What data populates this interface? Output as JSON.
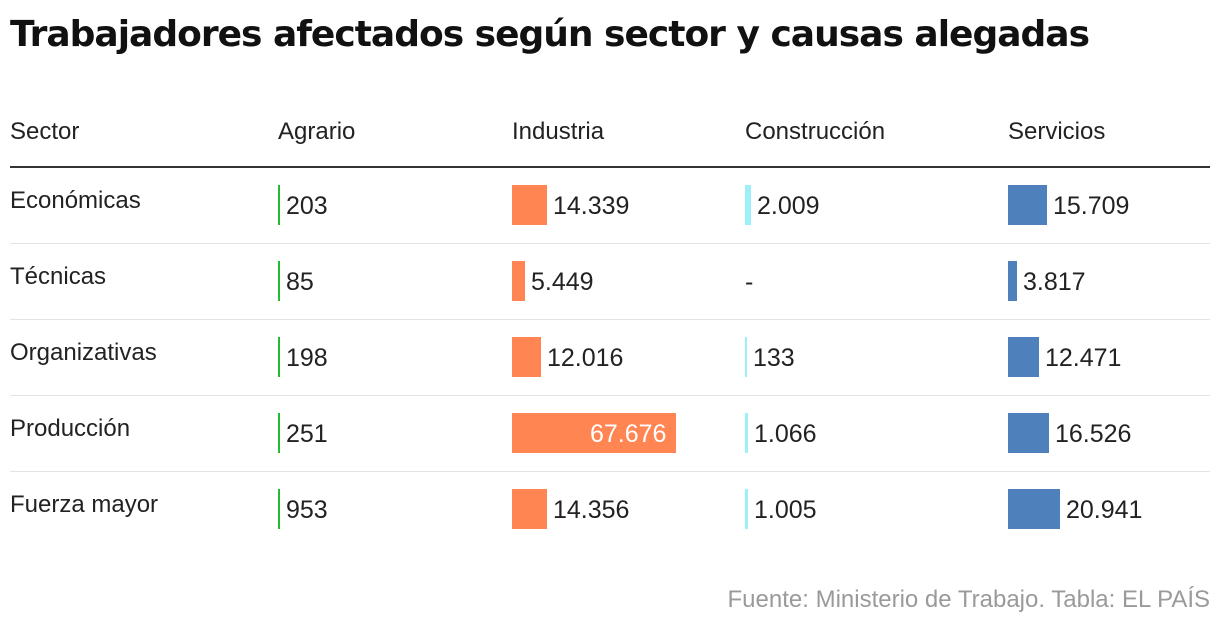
{
  "chart_data": {
    "type": "table",
    "title": "Trabajadores afectados según sector y causas alegadas",
    "row_header": "Sector",
    "columns": [
      {
        "label": "Agrario",
        "color": "#22bb33"
      },
      {
        "label": "Industria",
        "color": "#ff8552"
      },
      {
        "label": "Construcción",
        "color": "#9ef0f8"
      },
      {
        "label": "Servicios",
        "color": "#4e80bb"
      }
    ],
    "rows": [
      {
        "label": "Económicas",
        "values": [
          203,
          14339,
          2009,
          15709
        ],
        "display": [
          "203",
          "14.339",
          "2.009",
          "15.709"
        ]
      },
      {
        "label": "Técnicas",
        "values": [
          85,
          5449,
          null,
          3817
        ],
        "display": [
          "85",
          "5.449",
          "-",
          "3.817"
        ]
      },
      {
        "label": "Organizativas",
        "values": [
          198,
          12016,
          133,
          12471
        ],
        "display": [
          "198",
          "12.016",
          "133",
          "12.471"
        ]
      },
      {
        "label": "Producción",
        "values": [
          251,
          67676,
          1066,
          16526
        ],
        "display": [
          "251",
          "67.676",
          "1.066",
          "16.526"
        ]
      },
      {
        "label": "Fuerza mayor",
        "values": [
          953,
          14356,
          1005,
          20941
        ],
        "display": [
          "953",
          "14.356",
          "1.005",
          "20.941"
        ]
      }
    ]
  },
  "footer": "Fuente: Ministerio de Trabajo. Tabla: EL PAÍS"
}
